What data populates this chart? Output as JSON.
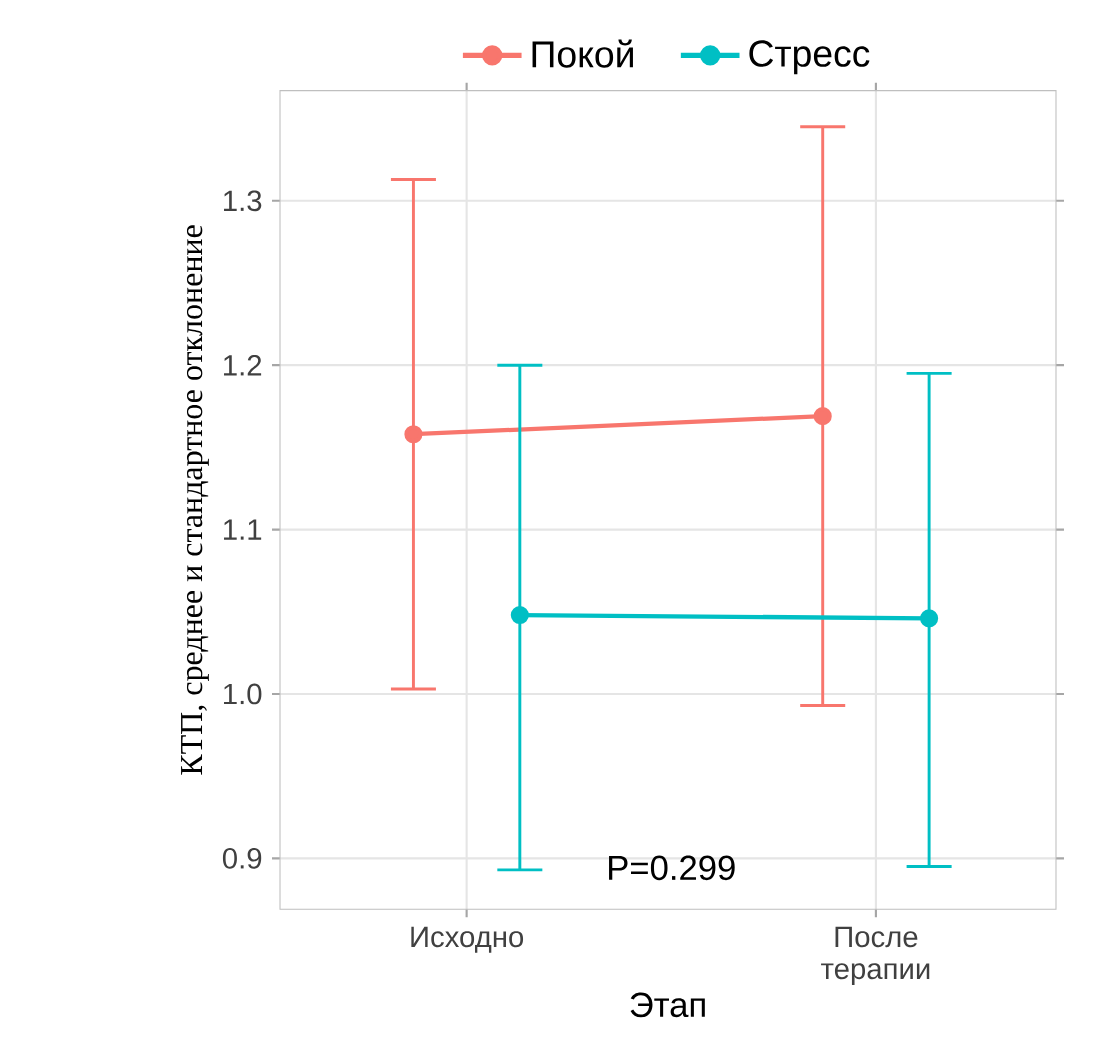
{
  "chart_data": {
    "type": "line",
    "xlabel": "Этап",
    "ylabel": "КТП, среднее и стандартное отклонение",
    "categories": [
      "Исходно",
      "После терапии"
    ],
    "series": [
      {
        "name": "Покой",
        "color": "#F8766D",
        "values": [
          1.158,
          1.169
        ],
        "errors": [
          [
            1.003,
            1.313
          ],
          [
            0.993,
            1.345
          ]
        ]
      },
      {
        "name": "Стресс",
        "color": "#00BFC4",
        "values": [
          1.048,
          1.046
        ],
        "errors": [
          [
            0.893,
            1.2
          ],
          [
            0.895,
            1.195
          ]
        ]
      }
    ],
    "ylim": [
      0.869,
      1.367
    ],
    "yticks": [
      {
        "value": 0.9,
        "label": "0.9"
      },
      {
        "value": 1.0,
        "label": "1.0"
      },
      {
        "value": 1.1,
        "label": "1.1"
      },
      {
        "value": 1.2,
        "label": "1.2"
      },
      {
        "value": 1.3,
        "label": "1.3"
      }
    ],
    "annotations": [
      "P=0.299"
    ],
    "grid": true,
    "legend": "top",
    "marker": "circle",
    "line_style": "solid"
  }
}
